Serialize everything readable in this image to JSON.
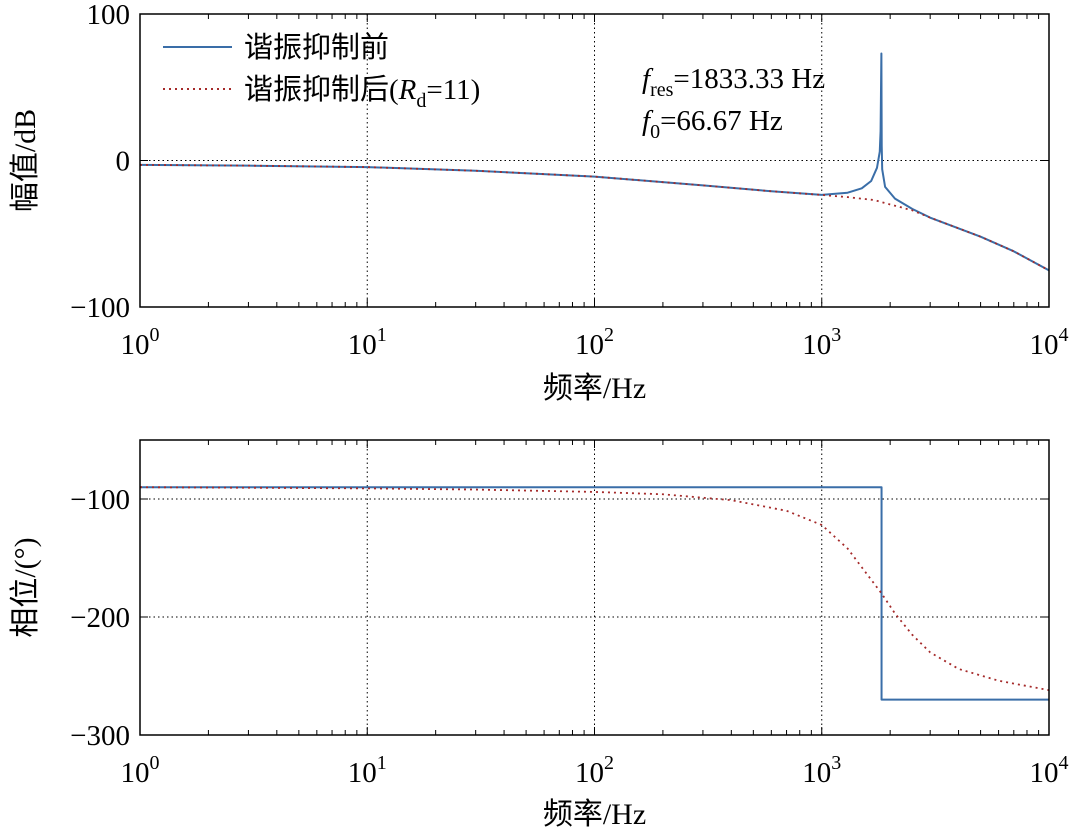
{
  "chart_data": [
    {
      "type": "line",
      "xscale": "log",
      "xlim": [
        1,
        10000
      ],
      "ylim": [
        -100,
        100
      ],
      "yticks": [
        100,
        0,
        -100
      ],
      "ytick_labels": [
        "100",
        "0",
        "−100"
      ],
      "xticks": [
        {
          "base": "10",
          "exp": "0"
        },
        {
          "base": "10",
          "exp": "1"
        },
        {
          "base": "10",
          "exp": "2"
        },
        {
          "base": "10",
          "exp": "3"
        },
        {
          "base": "10",
          "exp": "4"
        }
      ],
      "xlabel": "频率/Hz",
      "ylabel": "幅值/dB",
      "grid": true,
      "legend_position": "top-left",
      "series": [
        {
          "name": "谐振抑制前",
          "color": "#3a6ea8",
          "style": "solid",
          "points": [
            [
              1,
              -3
            ],
            [
              3,
              -3.5
            ],
            [
              10,
              -4.5
            ],
            [
              30,
              -7
            ],
            [
              100,
              -11
            ],
            [
              300,
              -17
            ],
            [
              600,
              -21
            ],
            [
              1000,
              -23.5
            ],
            [
              1300,
              -22
            ],
            [
              1500,
              -19
            ],
            [
              1650,
              -14
            ],
            [
              1750,
              -5
            ],
            [
              1800,
              6
            ],
            [
              1815,
              20
            ],
            [
              1822,
              45
            ],
            [
              1827,
              63
            ],
            [
              1830,
              73
            ],
            [
              1833,
              40
            ],
            [
              1836,
              10
            ],
            [
              1845,
              -6
            ],
            [
              1900,
              -18
            ],
            [
              2100,
              -26
            ],
            [
              2500,
              -33
            ],
            [
              3000,
              -39
            ],
            [
              5000,
              -52
            ],
            [
              7000,
              -62
            ],
            [
              10000,
              -75
            ]
          ]
        },
        {
          "name_parts": [
            "谐振抑制后(",
            "R",
            "d",
            "=11)"
          ],
          "color": "#a52a2a",
          "style": "dotted",
          "points": [
            [
              1,
              -3
            ],
            [
              3,
              -3.5
            ],
            [
              10,
              -4.5
            ],
            [
              30,
              -7
            ],
            [
              100,
              -11
            ],
            [
              300,
              -17
            ],
            [
              600,
              -21
            ],
            [
              1000,
              -23.5
            ],
            [
              1300,
              -25
            ],
            [
              1700,
              -27
            ],
            [
              2000,
              -30
            ],
            [
              2500,
              -34
            ],
            [
              3000,
              -39
            ],
            [
              5000,
              -52
            ],
            [
              7000,
              -62
            ],
            [
              10000,
              -75
            ]
          ]
        }
      ],
      "annotations": {
        "fres": {
          "symbol": "f",
          "sub": "res",
          "value": "=1833.33 Hz"
        },
        "f0": {
          "symbol": "f",
          "sub": "0",
          "value": "=66.67 Hz"
        }
      }
    },
    {
      "type": "line",
      "xscale": "log",
      "xlim": [
        1,
        10000
      ],
      "ylim": [
        -300,
        -50
      ],
      "yticks": [
        -100,
        -200,
        -300
      ],
      "ytick_labels": [
        "−100",
        "−200",
        "−300"
      ],
      "xticks": [
        {
          "base": "10",
          "exp": "0"
        },
        {
          "base": "10",
          "exp": "1"
        },
        {
          "base": "10",
          "exp": "2"
        },
        {
          "base": "10",
          "exp": "3"
        },
        {
          "base": "10",
          "exp": "4"
        }
      ],
      "xlabel": "频率/Hz",
      "ylabel": "相位/(°)",
      "grid": true,
      "series": [
        {
          "name": "谐振抑制前",
          "color": "#3a6ea8",
          "style": "solid",
          "points": [
            [
              1,
              -90
            ],
            [
              1833,
              -90
            ],
            [
              1833,
              -270
            ],
            [
              10000,
              -270
            ]
          ]
        },
        {
          "name": "谐振抑制后",
          "color": "#a52a2a",
          "style": "dotted",
          "points": [
            [
              1,
              -90
            ],
            [
              10,
              -91
            ],
            [
              30,
              -92
            ],
            [
              100,
              -94
            ],
            [
              200,
              -96
            ],
            [
              400,
              -101
            ],
            [
              700,
              -110
            ],
            [
              1000,
              -122
            ],
            [
              1300,
              -142
            ],
            [
              1600,
              -165
            ],
            [
              1833,
              -180
            ],
            [
              2100,
              -197
            ],
            [
              2500,
              -215
            ],
            [
              3000,
              -230
            ],
            [
              4000,
              -244
            ],
            [
              6000,
              -254
            ],
            [
              10000,
              -262
            ]
          ]
        }
      ]
    }
  ]
}
